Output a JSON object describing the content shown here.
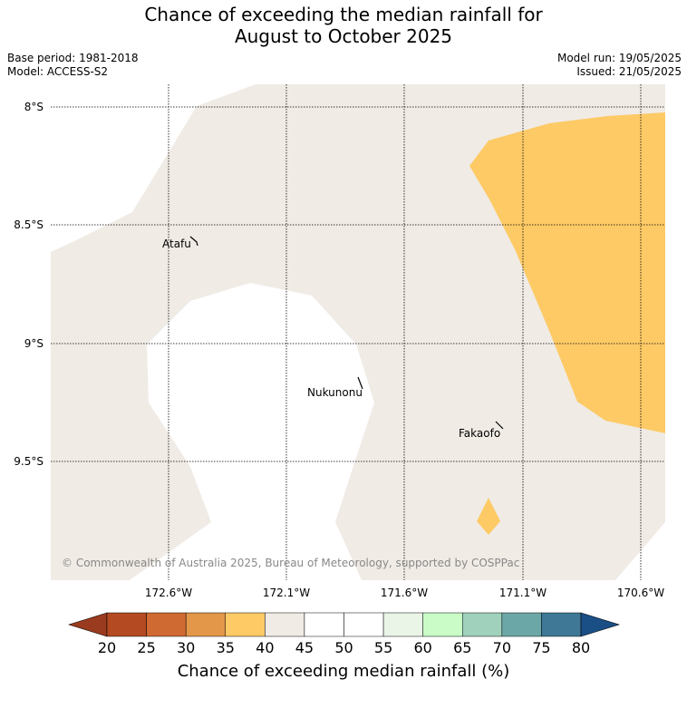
{
  "title_line1": "Chance of exceeding the median rainfall for",
  "title_line2": "August to October 2025",
  "base_period": "Base period: 1981-2018",
  "model": "Model: ACCESS-S2",
  "model_run": "Model run: 19/05/2025",
  "issued": "Issued: 21/05/2025",
  "map": {
    "lat_labels": [
      "8°S",
      "8.5°S",
      "9°S",
      "9.5°S"
    ],
    "lon_labels": [
      "172.6°W",
      "172.1°W",
      "171.6°W",
      "171.1°W",
      "170.6°W"
    ],
    "places": [
      {
        "name": "Atafu"
      },
      {
        "name": "Nukunonu"
      },
      {
        "name": "Fakaofo"
      }
    ],
    "copyright": "© Commonwealth of Australia 2025, Bureau of Meteorology, supported by COSPPac",
    "colors": {
      "neutral": "#f0ebe5",
      "band_35_40": "#fdca66",
      "background": "#ffffff"
    }
  },
  "colorbar": {
    "label": "Chance of exceeding median rainfall (%)",
    "ticks": [
      "20",
      "25",
      "30",
      "35",
      "40",
      "45",
      "50",
      "55",
      "60",
      "65",
      "70",
      "75",
      "80"
    ],
    "under_color": "#9a3a1e",
    "over_color": "#1a4f86",
    "segment_colors": [
      "#b44a22",
      "#cf6a32",
      "#e39749",
      "#fdca66",
      "#f0ebe5",
      "#ffffff",
      "#ffffff",
      "#eaf5e8",
      "#c9fcc7",
      "#9fd1bc",
      "#6ca7a7",
      "#3f7896"
    ]
  }
}
